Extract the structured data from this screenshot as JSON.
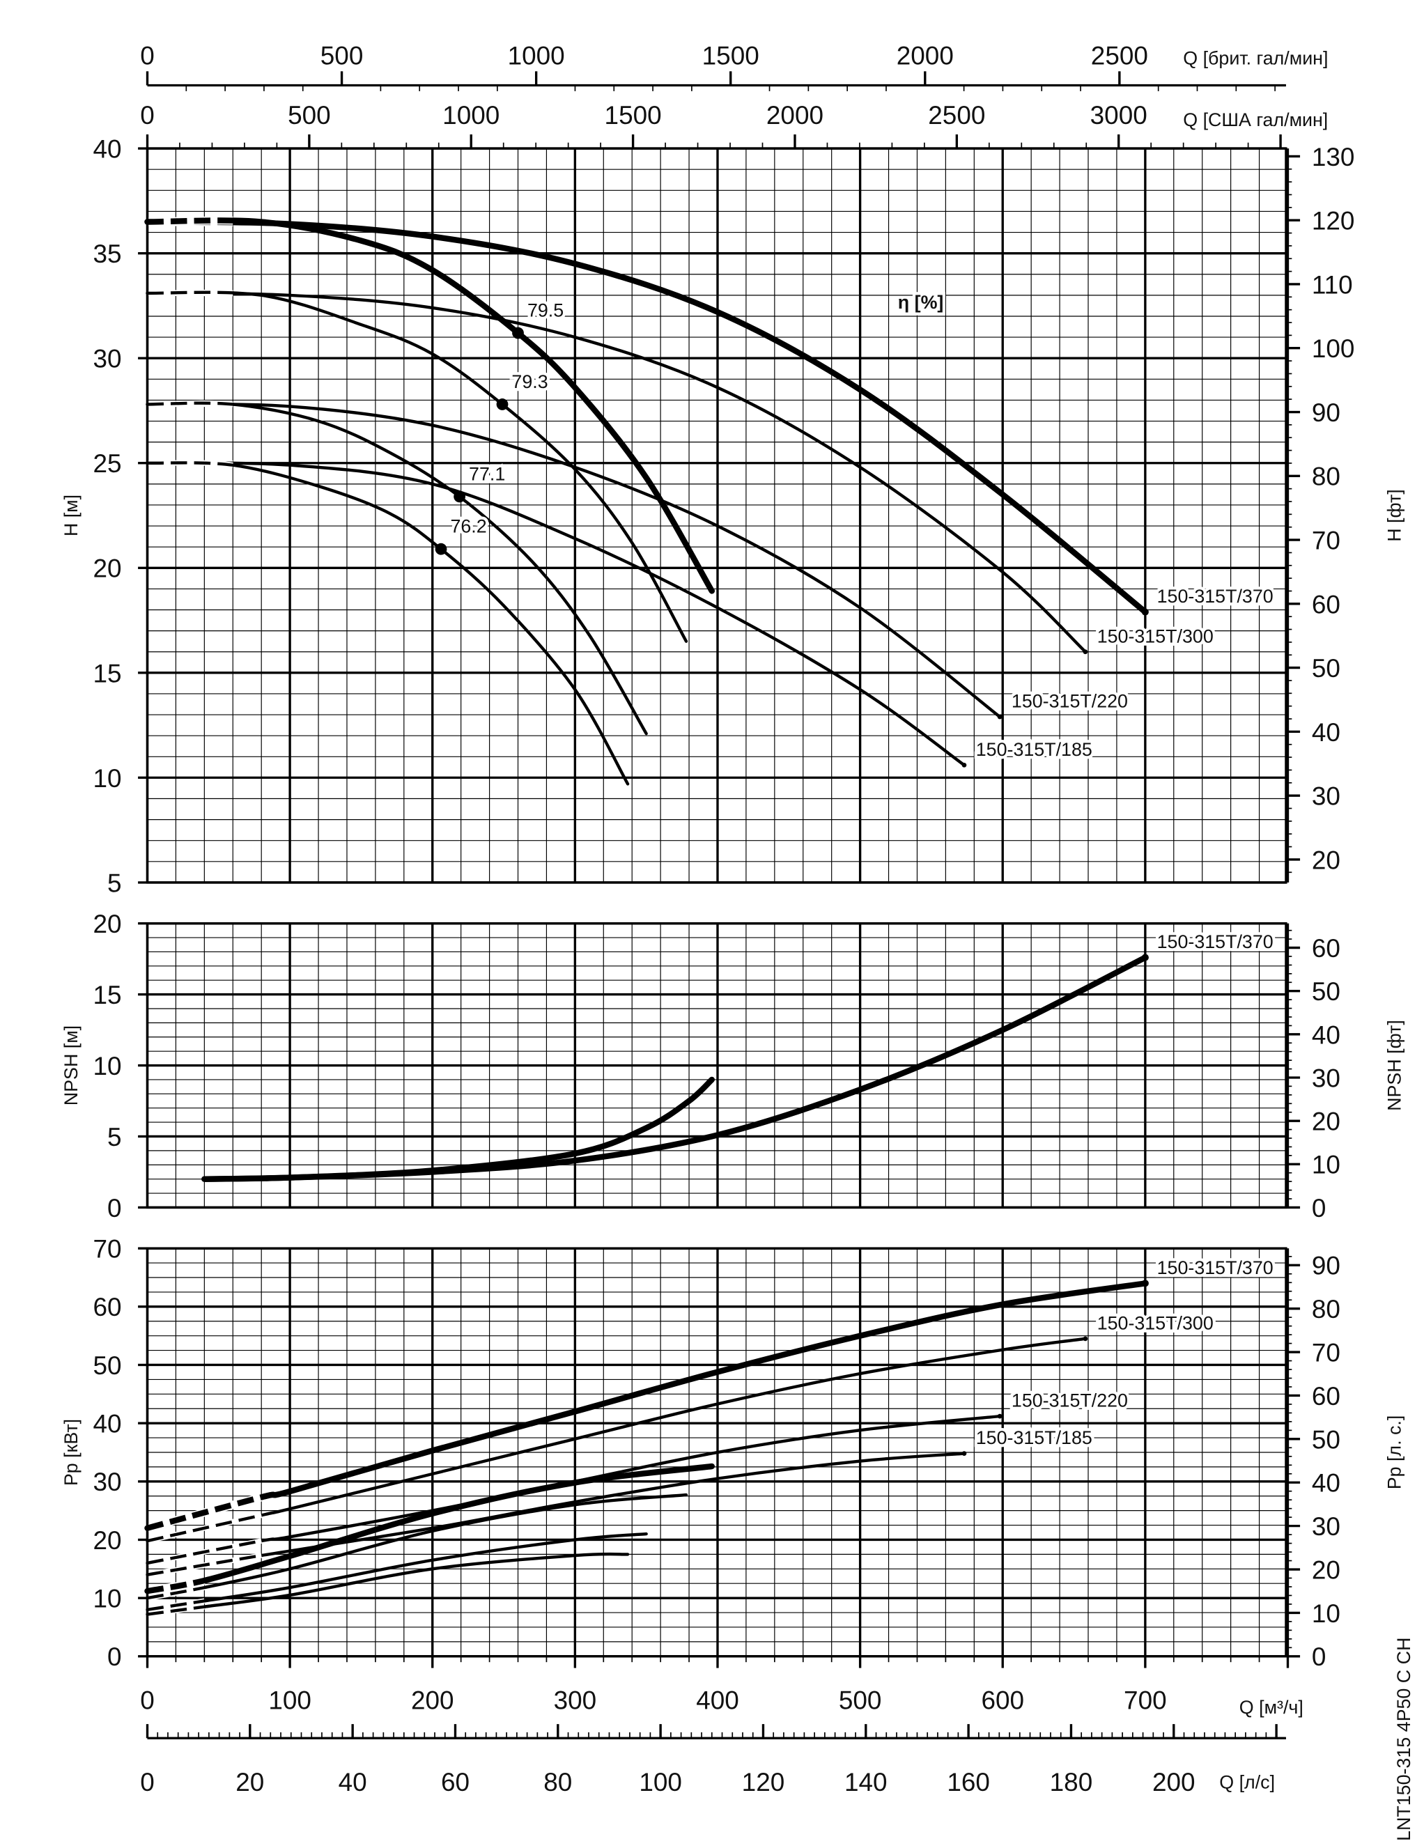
{
  "chart_data": [
    {
      "type": "line",
      "panel": "head",
      "xlabel": "Q [м³/ч]",
      "ylabel": "H [м]",
      "ylabel_right": "H [фт]",
      "xlim": [
        0,
        800
      ],
      "ylim": [
        5,
        40
      ],
      "yticks": [
        "5",
        "10",
        "15",
        "20",
        "25",
        "30",
        "35",
        "40"
      ],
      "yticks_right": [
        "20",
        "30",
        "40",
        "50",
        "60",
        "70",
        "80",
        "90",
        "100",
        "110",
        "120",
        "130"
      ],
      "grid": true,
      "annotation": "η [%]",
      "series": [
        {
          "name": "150-315T/370",
          "style": "thick",
          "dashed_until": 60,
          "points": [
            [
              0,
              36.5
            ],
            [
              100,
              36.4
            ],
            [
              200,
              35.8
            ],
            [
              300,
              34.5
            ],
            [
              400,
              32.2
            ],
            [
              500,
              28.5
            ],
            [
              600,
              23.5
            ],
            [
              700,
              17.9
            ]
          ]
        },
        {
          "name": "150-315T/300",
          "style": "thin",
          "dashed_until": 60,
          "points": [
            [
              0,
              33.1
            ],
            [
              100,
              33.0
            ],
            [
              200,
              32.4
            ],
            [
              300,
              31.0
            ],
            [
              400,
              28.6
            ],
            [
              500,
              24.8
            ],
            [
              600,
              19.8
            ],
            [
              658,
              16.0
            ]
          ]
        },
        {
          "name": "150-315T/220",
          "style": "thin",
          "dashed_until": 60,
          "points": [
            [
              0,
              27.8
            ],
            [
              100,
              27.7
            ],
            [
              200,
              26.8
            ],
            [
              300,
              24.8
            ],
            [
              400,
              22.0
            ],
            [
              500,
              18.1
            ],
            [
              598,
              12.9
            ]
          ]
        },
        {
          "name": "150-315T/185",
          "style": "thin",
          "dashed_until": 60,
          "points": [
            [
              0,
              25.0
            ],
            [
              100,
              24.9
            ],
            [
              200,
              24.0
            ],
            [
              300,
              21.4
            ],
            [
              400,
              18.1
            ],
            [
              500,
              14.2
            ],
            [
              573,
              10.6
            ]
          ]
        },
        {
          "style": "thick",
          "dashed_until": 60,
          "points": [
            [
              0,
              36.5
            ],
            [
              80,
              36.5
            ],
            [
              150,
              35.6
            ],
            [
              200,
              34.2
            ],
            [
              260,
              31.2
            ],
            [
              300,
              28.6
            ],
            [
              350,
              24.3
            ],
            [
              396,
              18.9
            ]
          ]
        },
        {
          "style": "thin",
          "dashed_until": 60,
          "points": [
            [
              0,
              33.1
            ],
            [
              80,
              33.0
            ],
            [
              150,
              31.6
            ],
            [
              200,
              30.2
            ],
            [
              249,
              27.8
            ],
            [
              300,
              24.7
            ],
            [
              340,
              21.2
            ],
            [
              378,
              16.5
            ]
          ]
        },
        {
          "style": "thin",
          "dashed_until": 60,
          "points": [
            [
              0,
              27.8
            ],
            [
              60,
              27.8
            ],
            [
              120,
              27.0
            ],
            [
              170,
              25.5
            ],
            [
              219,
              23.4
            ],
            [
              270,
              20.3
            ],
            [
              310,
              16.8
            ],
            [
              350,
              12.1
            ]
          ]
        },
        {
          "style": "thin",
          "dashed_until": 60,
          "points": [
            [
              0,
              25.0
            ],
            [
              60,
              24.9
            ],
            [
              120,
              23.9
            ],
            [
              170,
              22.6
            ],
            [
              206,
              20.9
            ],
            [
              250,
              18.2
            ],
            [
              300,
              14.2
            ],
            [
              337,
              9.7
            ]
          ]
        }
      ],
      "efficiency_points": [
        {
          "label": "79.5",
          "q": 260,
          "h": 31.2
        },
        {
          "label": "79.3",
          "q": 249,
          "h": 27.8
        },
        {
          "label": "77.1",
          "q": 219,
          "h": 23.4
        },
        {
          "label": "76.2",
          "q": 206,
          "h": 20.9
        }
      ]
    },
    {
      "type": "line",
      "panel": "npsh",
      "ylabel": "NPSH [м]",
      "ylabel_right": "NPSH [фт]",
      "xlim": [
        0,
        800
      ],
      "ylim": [
        0,
        20
      ],
      "yticks": [
        "0",
        "5",
        "10",
        "15",
        "20"
      ],
      "yticks_right": [
        "0",
        "10",
        "20",
        "30",
        "40",
        "50",
        "60"
      ],
      "grid": true,
      "series": [
        {
          "name": "150-315T/370",
          "style": "thick",
          "points": [
            [
              40,
              2.0
            ],
            [
              100,
              2.1
            ],
            [
              200,
              2.5
            ],
            [
              300,
              3.3
            ],
            [
              400,
              5.1
            ],
            [
              500,
              8.3
            ],
            [
              600,
              12.5
            ],
            [
              700,
              17.6
            ]
          ]
        },
        {
          "style": "thick",
          "points": [
            [
              40,
              2.0
            ],
            [
              100,
              2.1
            ],
            [
              200,
              2.6
            ],
            [
              300,
              3.8
            ],
            [
              350,
              5.6
            ],
            [
              380,
              7.5
            ],
            [
              396,
              9.0
            ]
          ]
        }
      ]
    },
    {
      "type": "line",
      "panel": "power",
      "ylabel": "Pp [кВт]",
      "ylabel_right": "Pp [л. с.]",
      "xlim": [
        0,
        800
      ],
      "ylim": [
        0,
        70
      ],
      "yticks": [
        "0",
        "10",
        "20",
        "30",
        "40",
        "50",
        "60",
        "70"
      ],
      "yticks_right": [
        "0",
        "10",
        "20",
        "30",
        "40",
        "50",
        "60",
        "70",
        "80",
        "90"
      ],
      "grid": true,
      "series": [
        {
          "name": "150-315T/370",
          "style": "thick",
          "dashed_until": 80,
          "points": [
            [
              0,
              22
            ],
            [
              80,
              27.3
            ],
            [
              100,
              28.3
            ],
            [
              200,
              35.3
            ],
            [
              300,
              42
            ],
            [
              400,
              48.8
            ],
            [
              500,
              55
            ],
            [
              600,
              60.4
            ],
            [
              700,
              64
            ]
          ]
        },
        {
          "name": "150-315T/300",
          "style": "thin",
          "dashed_until": 80,
          "points": [
            [
              0,
              19.8
            ],
            [
              80,
              24.2
            ],
            [
              100,
              25.3
            ],
            [
              200,
              31.3
            ],
            [
              300,
              37.3
            ],
            [
              400,
              43.3
            ],
            [
              500,
              48.5
            ],
            [
              600,
              52.6
            ],
            [
              658,
              54.5
            ]
          ]
        },
        {
          "name": "150-315T/220",
          "style": "thin",
          "dashed_until": 80,
          "points": [
            [
              0,
              16
            ],
            [
              80,
              19.8
            ],
            [
              100,
              20.5
            ],
            [
              200,
              25
            ],
            [
              300,
              30
            ],
            [
              400,
              35
            ],
            [
              500,
              38.8
            ],
            [
              598,
              41.2
            ]
          ]
        },
        {
          "name": "150-315T/185",
          "style": "thin",
          "dashed_until": 80,
          "points": [
            [
              0,
              14
            ],
            [
              80,
              17.3
            ],
            [
              200,
              22
            ],
            [
              300,
              26.5
            ],
            [
              400,
              30.5
            ],
            [
              500,
              33.5
            ],
            [
              573,
              34.8
            ]
          ]
        },
        {
          "style": "thick",
          "dashed_until": 40,
          "points": [
            [
              0,
              11.2
            ],
            [
              40,
              13
            ],
            [
              100,
              17.2
            ],
            [
              200,
              24.5
            ],
            [
              300,
              29.8
            ],
            [
              396,
              32.6
            ]
          ]
        },
        {
          "style": "thin",
          "dashed_until": 40,
          "points": [
            [
              0,
              10
            ],
            [
              40,
              11.8
            ],
            [
              100,
              15
            ],
            [
              200,
              21.5
            ],
            [
              300,
              26
            ],
            [
              378,
              27.7
            ]
          ]
        },
        {
          "style": "thin",
          "dashed_until": 40,
          "points": [
            [
              0,
              8
            ],
            [
              40,
              9.5
            ],
            [
              100,
              11.8
            ],
            [
              200,
              16.5
            ],
            [
              300,
              20
            ],
            [
              350,
              21
            ]
          ]
        },
        {
          "style": "thin",
          "dashed_until": 40,
          "points": [
            [
              0,
              7.2
            ],
            [
              40,
              8.5
            ],
            [
              100,
              10.5
            ],
            [
              200,
              15
            ],
            [
              300,
              17.3
            ],
            [
              337,
              17.5
            ]
          ]
        }
      ]
    }
  ],
  "axes": {
    "q_m3h": {
      "label": "Q [м³/ч]",
      "ticks": [
        "0",
        "100",
        "200",
        "300",
        "400",
        "500",
        "600",
        "700"
      ]
    },
    "q_ls": {
      "label": "Q [л/с]",
      "ticks": [
        "0",
        "20",
        "40",
        "60",
        "80",
        "100",
        "120",
        "140",
        "160",
        "180",
        "200"
      ]
    },
    "q_us_gpm": {
      "label": "Q [США гал/мин]",
      "ticks": [
        "0",
        "500",
        "1000",
        "1500",
        "2000",
        "2500",
        "3000"
      ]
    },
    "q_imp_gpm": {
      "label": "Q [брит. гал/мин]",
      "ticks": [
        "0",
        "500",
        "1000",
        "1500",
        "2000",
        "2500"
      ]
    }
  },
  "model_code": "LNT150-315  4P50  C  CH"
}
